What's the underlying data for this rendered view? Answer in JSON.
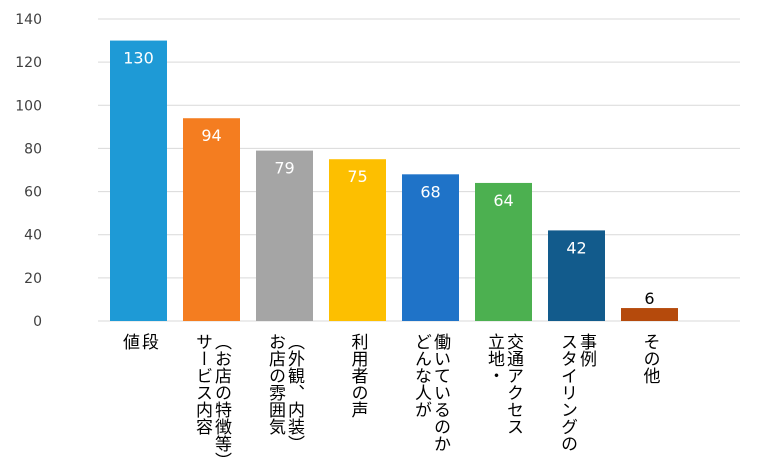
{
  "chart_data": {
    "type": "bar",
    "title": "",
    "xlabel": "",
    "ylabel": "",
    "ylim": [
      0,
      140
    ],
    "yticks": [
      0,
      20,
      40,
      60,
      80,
      100,
      120,
      140
    ],
    "grid": true,
    "legend": "none",
    "label_text_orientation": "vertical",
    "categories": [
      [
        "値",
        "段"
      ],
      [
        "サービス内容",
        "（お店の特徴等）"
      ],
      [
        "お店の雰囲気",
        "（外観、内装）"
      ],
      [
        "利用者の声"
      ],
      [
        "どんな人が",
        "働いているのか"
      ],
      [
        "立地・",
        "交通アクセス"
      ],
      [
        "スタイリングの",
        "事例"
      ],
      [
        "その他"
      ]
    ],
    "values": [
      130,
      94,
      79,
      75,
      68,
      64,
      42,
      6
    ],
    "bar_colors": [
      "#1e9ad6",
      "#f47d20",
      "#a5a5a5",
      "#fdbf00",
      "#1f73c8",
      "#4cb050",
      "#125b8c",
      "#b54a0c"
    ],
    "label_colors": [
      "#ffffff",
      "#ffffff",
      "#ffffff",
      "#ffffff",
      "#ffffff",
      "#ffffff",
      "#ffffff",
      "#000000"
    ],
    "gridline_color": "#d9d9d9"
  }
}
